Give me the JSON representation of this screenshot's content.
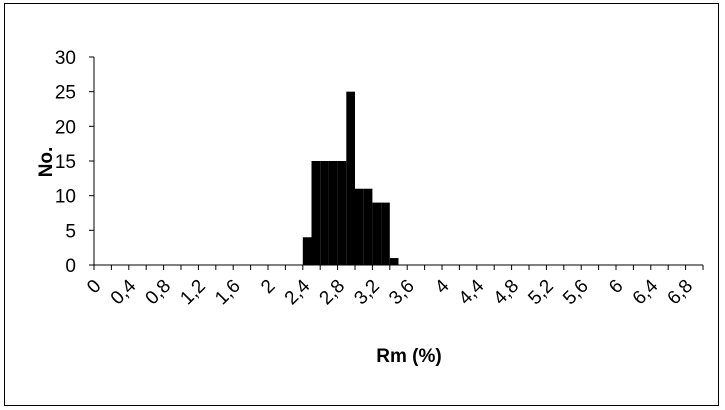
{
  "chart_data": {
    "type": "bar",
    "title": "",
    "xlabel": "Rm (%)",
    "ylabel": "No.",
    "ylim": [
      0,
      30
    ],
    "yticks": [
      "0",
      "5",
      "10",
      "15",
      "20",
      "25",
      "30"
    ],
    "x_tick_labels": [
      "0",
      "0,4",
      "0,8",
      "1,2",
      "1,6",
      "2",
      "2,4",
      "2,8",
      "3,2",
      "3,6",
      "4",
      "4,4",
      "4,8",
      "5,2",
      "5,6",
      "6",
      "6,4",
      "6,8"
    ],
    "bins": [
      {
        "from": 2.4,
        "to": 2.5,
        "value": 4
      },
      {
        "from": 2.5,
        "to": 2.6,
        "value": 15
      },
      {
        "from": 2.6,
        "to": 2.7,
        "value": 15
      },
      {
        "from": 2.7,
        "to": 2.8,
        "value": 15
      },
      {
        "from": 2.8,
        "to": 2.9,
        "value": 15
      },
      {
        "from": 2.9,
        "to": 3.0,
        "value": 25
      },
      {
        "from": 3.0,
        "to": 3.1,
        "value": 11
      },
      {
        "from": 3.1,
        "to": 3.2,
        "value": 11
      },
      {
        "from": 3.2,
        "to": 3.3,
        "value": 9
      },
      {
        "from": 3.3,
        "to": 3.4,
        "value": 9
      },
      {
        "from": 3.4,
        "to": 3.5,
        "value": 1
      }
    ],
    "grid": false,
    "legend": "none",
    "bar_color": "#000000"
  }
}
